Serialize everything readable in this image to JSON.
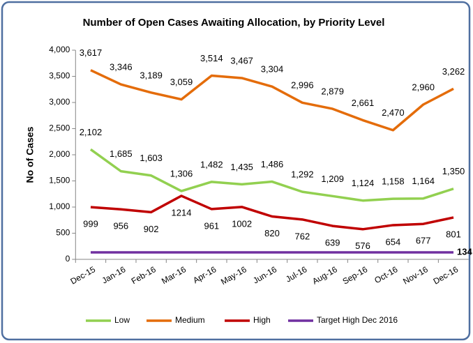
{
  "chart_data": {
    "type": "line",
    "title": "Number of  Open Cases Awaiting Allocation, by Priority Level",
    "y_label": "No of Cases",
    "categories": [
      "Dec-15",
      "Jan-16",
      "Feb-16",
      "Mar-16",
      "Apr-16",
      "May-16",
      "Jun-16",
      "Jul-16",
      "Aug-16",
      "Sep-16",
      "Oct-16",
      "Nov-16",
      "Dec-16"
    ],
    "series": [
      {
        "name": "Low",
        "color": "#92d050",
        "values": [
          2102,
          1685,
          1603,
          1306,
          1482,
          1435,
          1486,
          1292,
          1209,
          1124,
          1158,
          1164,
          1350
        ],
        "value_labels": [
          "2,102",
          "1,685",
          "1,603",
          "1,306",
          "1,482",
          "1,435",
          "1,486",
          "1,292",
          "1,209",
          "1,124",
          "1,158",
          "1,164",
          "1,350"
        ]
      },
      {
        "name": "Medium",
        "color": "#e46c0a",
        "values": [
          3617,
          3346,
          3189,
          3059,
          3514,
          3467,
          3304,
          2996,
          2879,
          2661,
          2470,
          2960,
          3262
        ],
        "value_labels": [
          "3,617",
          "3,346",
          "3,189",
          "3,059",
          "3,514",
          "3,467",
          "3,304",
          "2,996",
          "2,879",
          "2,661",
          "2,470",
          "2,960",
          "3,262"
        ]
      },
      {
        "name": "High",
        "color": "#c00000",
        "values": [
          999,
          956,
          902,
          1214,
          961,
          1002,
          820,
          762,
          639,
          576,
          654,
          677,
          801
        ]
      },
      {
        "name": "Target High Dec 2016",
        "color": "#7030a0",
        "values": [
          134,
          134,
          134,
          134,
          134,
          134,
          134,
          134,
          134,
          134,
          134,
          134,
          134
        ],
        "value_labels": [
          null,
          null,
          null,
          null,
          null,
          null,
          null,
          null,
          null,
          null,
          null,
          null,
          "134"
        ]
      }
    ],
    "ylim": [
      0,
      4000
    ],
    "yticks": [
      0,
      500,
      {
        "value": 1000,
        "label": "1,000"
      },
      {
        "value": 1500,
        "label": "1,500"
      },
      {
        "value": 2000,
        "label": "2,000"
      },
      {
        "value": 2500,
        "label": "2,500"
      },
      {
        "value": 3000,
        "label": "3,000"
      },
      {
        "value": 3500,
        "label": "3,500"
      },
      {
        "value": 4000,
        "label": "4,000"
      }
    ],
    "grid": false,
    "legend": "bottom"
  }
}
